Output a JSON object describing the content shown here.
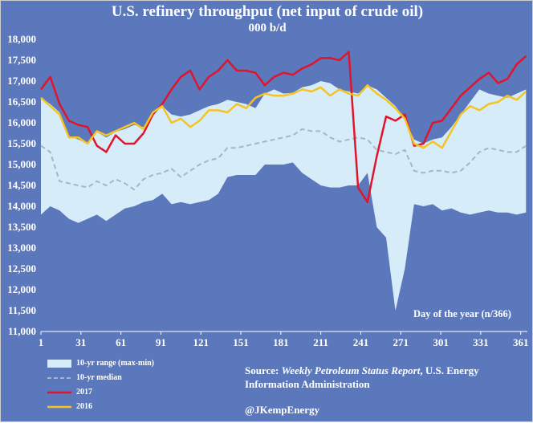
{
  "title": "U.S. refinery throughput (net input of  crude oil)",
  "subtitle": "000 b/d",
  "xlabel": "Day of the year (n/366)",
  "source": {
    "prefix": "Source: ",
    "report": "Weekly Petroleum Status Report",
    "suffix": ", U.S. Energy Information Administration"
  },
  "handle": "@JKempEnergy",
  "colors": {
    "background": "#5b78bd",
    "range_fill": "#d6ecf9",
    "median": "#a9b4c6",
    "y2017": "#e0142b",
    "y2016": "#f5c324",
    "text": "#ffffff"
  },
  "legend": [
    {
      "label": "10-yr range (max-min)",
      "symbol": "area",
      "color": "#d6ecf9"
    },
    {
      "label": "10-yr median",
      "symbol": "dashed-line",
      "color": "#a9b4c6"
    },
    {
      "label": "2017",
      "symbol": "line",
      "color": "#e0142b"
    },
    {
      "label": "2016",
      "symbol": "line",
      "color": "#f5c324"
    }
  ],
  "chart_data": {
    "type": "area",
    "title": "U.S. refinery throughput (net input of  crude oil)",
    "subtitle": "000 b/d",
    "xlabel": "Day of the year (n/366)",
    "ylabel": "",
    "xlim": [
      1,
      366
    ],
    "ylim": [
      11000,
      18000
    ],
    "xticks": [
      1,
      31,
      61,
      91,
      121,
      151,
      181,
      211,
      241,
      271,
      301,
      331,
      361
    ],
    "yticks": [
      11000,
      11500,
      12000,
      12500,
      13000,
      13500,
      14000,
      14500,
      15000,
      15500,
      16000,
      16500,
      17000,
      17500,
      18000
    ],
    "grid": false,
    "legend_position": "bottom-left",
    "x": [
      1,
      8,
      15,
      22,
      29,
      36,
      43,
      50,
      57,
      64,
      71,
      78,
      85,
      92,
      99,
      106,
      113,
      120,
      127,
      134,
      141,
      148,
      155,
      162,
      169,
      176,
      183,
      190,
      197,
      204,
      211,
      218,
      225,
      232,
      239,
      246,
      253,
      260,
      267,
      274,
      281,
      288,
      295,
      302,
      309,
      316,
      323,
      330,
      337,
      344,
      351,
      358,
      365
    ],
    "series": [
      {
        "name": "10-yr range (max-min)",
        "kind": "band",
        "upper": [
          16600,
          16450,
          16250,
          15680,
          15600,
          15500,
          15780,
          15650,
          15780,
          15850,
          15950,
          15900,
          16200,
          16400,
          16200,
          16150,
          16200,
          16300,
          16400,
          16450,
          16550,
          16500,
          16450,
          16350,
          16700,
          16800,
          16700,
          16720,
          16850,
          16900,
          17000,
          16950,
          16800,
          16750,
          16700,
          16900,
          16800,
          16600,
          16400,
          16100,
          15600,
          15500,
          15600,
          15650,
          15900,
          16200,
          16500,
          16800,
          16700,
          16650,
          16600,
          16700,
          16800
        ],
        "lower": [
          13800,
          14000,
          13900,
          13700,
          13600,
          13700,
          13800,
          13650,
          13800,
          13950,
          14000,
          14100,
          14150,
          14300,
          14050,
          14100,
          14050,
          14100,
          14150,
          14300,
          14700,
          14750,
          14750,
          14750,
          15000,
          15000,
          15000,
          15050,
          14800,
          14650,
          14500,
          14450,
          14450,
          14500,
          14500,
          14800,
          13500,
          13250,
          11500,
          12500,
          14050,
          14000,
          14050,
          13900,
          13950,
          13850,
          13800,
          13850,
          13900,
          13850,
          13850,
          13800,
          13850
        ]
      },
      {
        "name": "10-yr median",
        "kind": "line",
        "style": "dashed",
        "values": [
          15450,
          15300,
          14600,
          14550,
          14500,
          14450,
          14600,
          14500,
          14650,
          14550,
          14400,
          14650,
          14750,
          14800,
          14900,
          14700,
          14850,
          15000,
          15100,
          15150,
          15400,
          15400,
          15450,
          15500,
          15550,
          15600,
          15650,
          15700,
          15850,
          15800,
          15800,
          15650,
          15550,
          15600,
          15650,
          15600,
          15350,
          15300,
          15250,
          15350,
          14850,
          14800,
          14850,
          14850,
          14800,
          14850,
          15050,
          15300,
          15400,
          15350,
          15300,
          15300,
          15450
        ]
      },
      {
        "name": "2017",
        "kind": "line",
        "values": [
          16800,
          17100,
          16450,
          16050,
          15950,
          15900,
          15450,
          15300,
          15700,
          15500,
          15500,
          15750,
          16200,
          16450,
          16800,
          17100,
          17250,
          16800,
          17100,
          17250,
          17500,
          17250,
          17250,
          17200,
          16900,
          17100,
          17200,
          17150,
          17300,
          17400,
          17550,
          17550,
          17500,
          17700,
          14450,
          14100,
          15200,
          16150,
          16050,
          16200,
          15450,
          15500,
          16000,
          16050,
          16350,
          16650,
          16850,
          17050,
          17200,
          16950,
          17050,
          17400,
          17600
        ]
      },
      {
        "name": "2016",
        "kind": "line",
        "values": [
          16600,
          16400,
          16200,
          15650,
          15650,
          15500,
          15800,
          15700,
          15800,
          15900,
          16000,
          15850,
          16250,
          16400,
          16000,
          16100,
          15900,
          16050,
          16300,
          16300,
          16250,
          16450,
          16350,
          16600,
          16700,
          16650,
          16650,
          16700,
          16800,
          16750,
          16850,
          16650,
          16800,
          16700,
          16650,
          16900,
          16700,
          16550,
          16350,
          16100,
          15500,
          15400,
          15550,
          15400,
          15800,
          16200,
          16400,
          16300,
          16450,
          16500,
          16650,
          16550,
          16750
        ]
      }
    ]
  }
}
